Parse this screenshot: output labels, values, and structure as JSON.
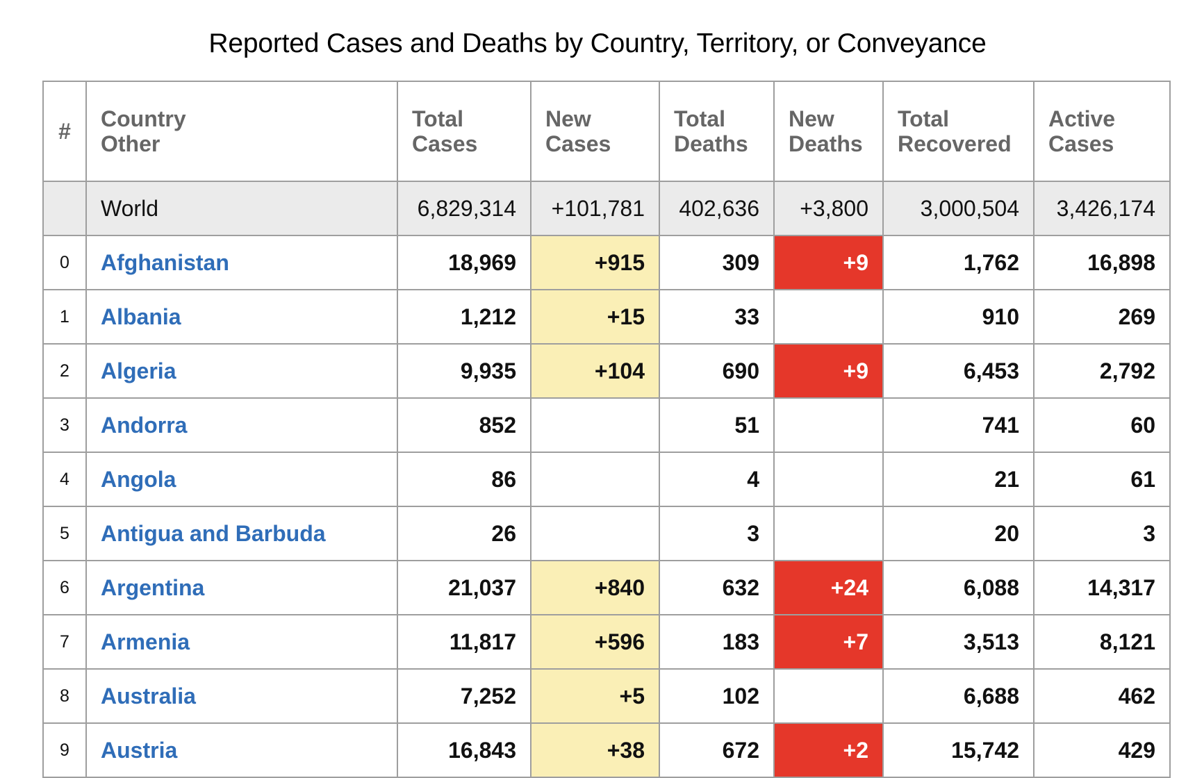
{
  "title": "Reported Cases and Deaths by Country, Territory, or Conveyance",
  "headers": {
    "index": "#",
    "country": [
      "Country",
      "Other"
    ],
    "total_cases": [
      "Total",
      "Cases"
    ],
    "new_cases": [
      "New",
      "Cases"
    ],
    "total_deaths": [
      "Total",
      "Deaths"
    ],
    "new_deaths": [
      "New",
      "Deaths"
    ],
    "total_recovered": [
      "Total",
      "Recovered"
    ],
    "active_cases": [
      "Active",
      "Cases"
    ]
  },
  "world": {
    "name": "World",
    "total_cases": "6,829,314",
    "new_cases": "+101,781",
    "total_deaths": "402,636",
    "new_deaths": "+3,800",
    "total_recovered": "3,000,504",
    "active_cases": "3,426,174"
  },
  "rows": [
    {
      "index": "0",
      "country": "Afghanistan",
      "total_cases": "18,969",
      "new_cases": "+915",
      "total_deaths": "309",
      "new_deaths": "+9",
      "total_recovered": "1,762",
      "active_cases": "16,898"
    },
    {
      "index": "1",
      "country": "Albania",
      "total_cases": "1,212",
      "new_cases": "+15",
      "total_deaths": "33",
      "new_deaths": "",
      "total_recovered": "910",
      "active_cases": "269"
    },
    {
      "index": "2",
      "country": "Algeria",
      "total_cases": "9,935",
      "new_cases": "+104",
      "total_deaths": "690",
      "new_deaths": "+9",
      "total_recovered": "6,453",
      "active_cases": "2,792"
    },
    {
      "index": "3",
      "country": "Andorra",
      "total_cases": "852",
      "new_cases": "",
      "total_deaths": "51",
      "new_deaths": "",
      "total_recovered": "741",
      "active_cases": "60"
    },
    {
      "index": "4",
      "country": "Angola",
      "total_cases": "86",
      "new_cases": "",
      "total_deaths": "4",
      "new_deaths": "",
      "total_recovered": "21",
      "active_cases": "61"
    },
    {
      "index": "5",
      "country": "Antigua and Barbuda",
      "total_cases": "26",
      "new_cases": "",
      "total_deaths": "3",
      "new_deaths": "",
      "total_recovered": "20",
      "active_cases": "3"
    },
    {
      "index": "6",
      "country": "Argentina",
      "total_cases": "21,037",
      "new_cases": "+840",
      "total_deaths": "632",
      "new_deaths": "+24",
      "total_recovered": "6,088",
      "active_cases": "14,317"
    },
    {
      "index": "7",
      "country": "Armenia",
      "total_cases": "11,817",
      "new_cases": "+596",
      "total_deaths": "183",
      "new_deaths": "+7",
      "total_recovered": "3,513",
      "active_cases": "8,121"
    },
    {
      "index": "8",
      "country": "Australia",
      "total_cases": "7,252",
      "new_cases": "+5",
      "total_deaths": "102",
      "new_deaths": "",
      "total_recovered": "6,688",
      "active_cases": "462"
    },
    {
      "index": "9",
      "country": "Austria",
      "total_cases": "16,843",
      "new_cases": "+38",
      "total_deaths": "672",
      "new_deaths": "+2",
      "total_recovered": "15,742",
      "active_cases": "429"
    }
  ],
  "colors": {
    "new_cases_highlight": "#faefb6",
    "new_deaths_highlight": "#e5372a",
    "country_link": "#2f6db8",
    "header_text": "#666666",
    "world_row_bg": "#ebebeb"
  }
}
